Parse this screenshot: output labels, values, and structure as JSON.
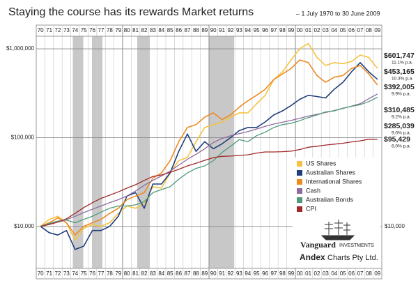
{
  "chart_data": {
    "type": "line",
    "title": "Staying the course has its rewards Market returns",
    "subtitle": "– 1 July 1970 to 30 June 2009",
    "categories": [
      "70",
      "71",
      "72",
      "73",
      "74",
      "75",
      "76",
      "77",
      "78",
      "79",
      "80",
      "81",
      "82",
      "83",
      "84",
      "85",
      "86",
      "87",
      "88",
      "89",
      "90",
      "91",
      "92",
      "93",
      "94",
      "95",
      "96",
      "97",
      "98",
      "99",
      "00",
      "01",
      "02",
      "03",
      "04",
      "05",
      "06",
      "07",
      "08",
      "09"
    ],
    "log_scale": true,
    "grid": true,
    "legend": "lower right",
    "ylim": [
      3370,
      1386000
    ],
    "yticks": [
      {
        "value": 10000,
        "label": "$10,000"
      },
      {
        "value": 100000,
        "label": "$100,000"
      },
      {
        "value": 1000000,
        "label": "$1,000,000"
      }
    ],
    "y2lim": [
      3370,
      1386000
    ],
    "y2ticks": [
      {
        "value": 10000,
        "label": "$10,000"
      }
    ],
    "series": [
      {
        "name": "US Shares",
        "color": "#f5c242",
        "annotation": "11.1% p.a.",
        "values": [
          10000,
          12000,
          13000,
          11000,
          7000,
          9500,
          10500,
          10000,
          11000,
          14000,
          17000,
          16000,
          18000,
          28000,
          27000,
          40000,
          55000,
          60000,
          90000,
          130000,
          140000,
          150000,
          170000,
          190000,
          190000,
          240000,
          300000,
          450000,
          550000,
          750000,
          1000000,
          1150000,
          800000,
          650000,
          700000,
          680000,
          720000,
          850000,
          800000,
          601747
        ],
        "value_labels": [
          null,
          null,
          null,
          null,
          null,
          null,
          null,
          null,
          null,
          null,
          null,
          null,
          null,
          null,
          null,
          null,
          null,
          null,
          null,
          null,
          null,
          null,
          null,
          null,
          null,
          null,
          null,
          null,
          null,
          null,
          null,
          null,
          null,
          null,
          null,
          null,
          null,
          null,
          null,
          "$601,747"
        ]
      },
      {
        "name": "Australian Shares",
        "color": "#1f3f7a",
        "annotation": "10.3% p.a.",
        "values": [
          10000,
          8500,
          8000,
          9000,
          5500,
          6000,
          9000,
          9000,
          10000,
          13000,
          22000,
          24000,
          16000,
          30000,
          30000,
          40000,
          70000,
          110000,
          70000,
          90000,
          75000,
          85000,
          100000,
          120000,
          130000,
          130000,
          150000,
          180000,
          200000,
          230000,
          270000,
          300000,
          290000,
          280000,
          350000,
          420000,
          550000,
          700000,
          550000,
          453165
        ],
        "value_labels": [
          null,
          null,
          null,
          null,
          null,
          null,
          null,
          null,
          null,
          null,
          null,
          null,
          null,
          null,
          null,
          null,
          null,
          null,
          null,
          null,
          null,
          null,
          null,
          null,
          null,
          null,
          null,
          null,
          null,
          null,
          null,
          null,
          null,
          null,
          null,
          null,
          null,
          null,
          null,
          "$453,165"
        ]
      },
      {
        "name": "International Shares",
        "color": "#ee8a22",
        "annotation": "9.9% p.a.",
        "values": [
          10000,
          11000,
          12500,
          11000,
          8000,
          10000,
          11000,
          12000,
          14000,
          16000,
          20000,
          22000,
          24000,
          35000,
          40000,
          55000,
          90000,
          130000,
          140000,
          170000,
          190000,
          160000,
          180000,
          220000,
          260000,
          300000,
          350000,
          450000,
          520000,
          600000,
          750000,
          700000,
          500000,
          420000,
          480000,
          500000,
          600000,
          650000,
          520000,
          392005
        ],
        "value_labels": [
          null,
          null,
          null,
          null,
          null,
          null,
          null,
          null,
          null,
          null,
          null,
          null,
          null,
          null,
          null,
          null,
          null,
          null,
          null,
          null,
          null,
          null,
          null,
          null,
          null,
          null,
          null,
          null,
          null,
          null,
          null,
          null,
          null,
          null,
          null,
          null,
          null,
          null,
          null,
          "$392,005"
        ]
      },
      {
        "name": "Cash",
        "color": "#8e6a9e",
        "annotation": "9.2% p.a.",
        "values": [
          10000,
          10600,
          11200,
          11900,
          13000,
          14300,
          15600,
          17000,
          18500,
          20000,
          22000,
          25000,
          29000,
          33000,
          37000,
          42000,
          49000,
          57000,
          65000,
          75000,
          88000,
          98000,
          105000,
          111000,
          117000,
          125000,
          134000,
          142000,
          149000,
          156000,
          165000,
          175000,
          183000,
          192000,
          202000,
          213000,
          226000,
          241000,
          275000,
          310485
        ],
        "value_labels": [
          null,
          null,
          null,
          null,
          null,
          null,
          null,
          null,
          null,
          null,
          null,
          null,
          null,
          null,
          null,
          null,
          null,
          null,
          null,
          null,
          null,
          null,
          null,
          null,
          null,
          null,
          null,
          null,
          null,
          null,
          null,
          null,
          null,
          null,
          null,
          null,
          null,
          null,
          null,
          "$310,485"
        ]
      },
      {
        "name": "Australian Bonds",
        "color": "#4f9a7a",
        "annotation": "9.0% p.a.",
        "values": [
          10000,
          10800,
          11500,
          11800,
          11000,
          12000,
          13000,
          14500,
          16000,
          17000,
          17000,
          17500,
          19000,
          24000,
          26000,
          28000,
          34000,
          40000,
          45000,
          48000,
          55000,
          68000,
          80000,
          95000,
          90000,
          105000,
          115000,
          130000,
          140000,
          145000,
          155000,
          168000,
          180000,
          195000,
          200000,
          215000,
          225000,
          235000,
          255000,
          285039
        ],
        "value_labels": [
          null,
          null,
          null,
          null,
          null,
          null,
          null,
          null,
          null,
          null,
          null,
          null,
          null,
          null,
          null,
          null,
          null,
          null,
          null,
          null,
          null,
          null,
          null,
          null,
          null,
          null,
          null,
          null,
          null,
          null,
          null,
          null,
          null,
          null,
          null,
          null,
          null,
          null,
          null,
          "$285,039"
        ]
      },
      {
        "name": "CPI",
        "color": "#a02a2a",
        "annotation": "6.0% p.a.",
        "values": [
          10000,
          10500,
          11200,
          12200,
          14000,
          16300,
          18500,
          20700,
          22500,
          24500,
          27000,
          29500,
          33000,
          36500,
          38000,
          40500,
          44000,
          48000,
          51500,
          55500,
          59500,
          61500,
          62000,
          63000,
          64000,
          67000,
          69000,
          69000,
          69500,
          70500,
          73500,
          78000,
          80000,
          82500,
          84500,
          86500,
          89500,
          92000,
          96000,
          95429
        ],
        "value_labels": [
          null,
          null,
          null,
          null,
          null,
          null,
          null,
          null,
          null,
          null,
          null,
          null,
          null,
          null,
          null,
          null,
          null,
          null,
          null,
          null,
          null,
          null,
          null,
          null,
          null,
          null,
          null,
          null,
          null,
          null,
          null,
          null,
          null,
          null,
          null,
          null,
          null,
          null,
          null,
          "$95,429"
        ]
      }
    ],
    "annotations": [
      "Vanguard",
      "INVESTMENTS",
      "Andex",
      "Charts Pty Ltd."
    ]
  }
}
